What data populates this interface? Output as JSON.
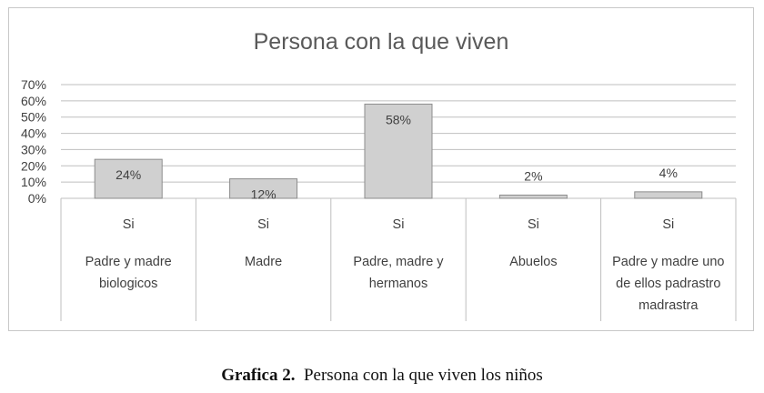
{
  "chart_data": {
    "type": "bar",
    "title": "Persona con la que viven",
    "categories": [
      [
        "Si",
        "Padre y madre",
        "biologicos"
      ],
      [
        "Si",
        "Madre"
      ],
      [
        "Si",
        "Padre, madre y",
        "hermanos"
      ],
      [
        "Si",
        "Abuelos"
      ],
      [
        "Si",
        "Padre y madre uno",
        "de ellos padrastro",
        "madrastra"
      ]
    ],
    "values": [
      24,
      12,
      58,
      2,
      4
    ],
    "data_labels": [
      "24%",
      "12%",
      "58%",
      "2%",
      "4%"
    ],
    "y_ticks": [
      "0%",
      "10%",
      "20%",
      "30%",
      "40%",
      "50%",
      "60%",
      "70%"
    ],
    "ylim": [
      0,
      70
    ],
    "grid": true,
    "legend": "none",
    "colors": {
      "bar_fill": "#d0d0d0",
      "bar_stroke": "#8c8c8c",
      "grid": "#bfbfbf"
    }
  },
  "caption": {
    "bold": "Grafica 2.",
    "text": "Persona con la que viven los niños"
  }
}
